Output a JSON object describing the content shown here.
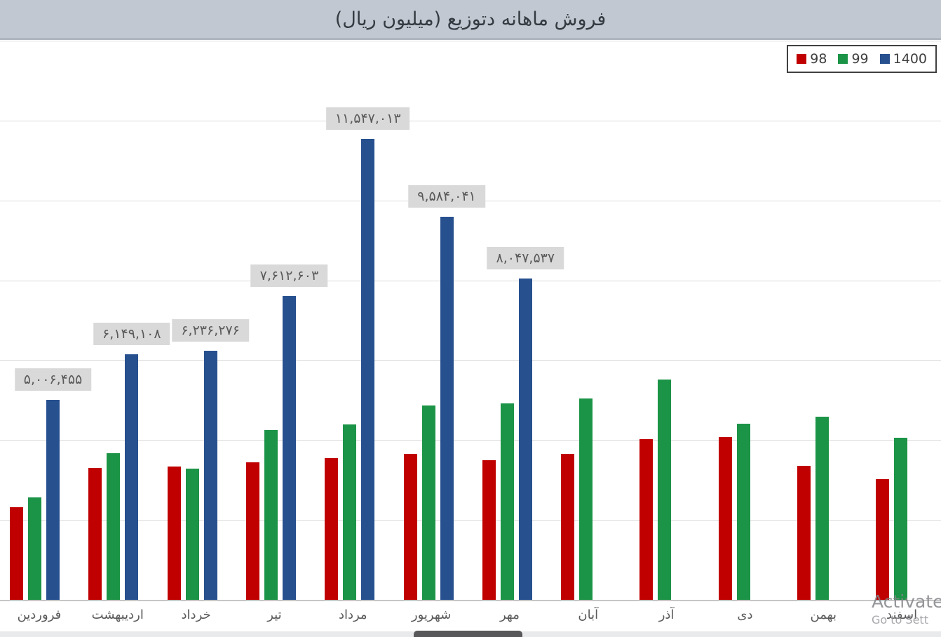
{
  "header": {
    "title": "فروش ماهانه دتوزیع (میلیون ریال)"
  },
  "watermark": {
    "line1": "Activate",
    "line2": "Go to Sett"
  },
  "colors": {
    "series_98": "#c00000",
    "series_99": "#1c9447",
    "series_1400": "#27508f",
    "header_bg": "#c2c8d1",
    "gridline": "#dcdcdc",
    "value_label_bg": "#d9d9d9",
    "value_label_text": "#595959"
  },
  "chart_data": {
    "type": "bar",
    "title": "فروش ماهانه دتوزیع (میلیون ریال)",
    "categories": [
      "فروردین",
      "اردیبهشت",
      "خرداد",
      "تیر",
      "مرداد",
      "شهریور",
      "مهر",
      "آبان",
      "آذر",
      "دی",
      "بهمن",
      "اسفند"
    ],
    "series": [
      {
        "name": "98",
        "color": "#c00000",
        "values": [
          2320000,
          3300000,
          3340000,
          3440000,
          3550000,
          3650000,
          3500000,
          3650000,
          4020000,
          4080000,
          3360000,
          3020000
        ]
      },
      {
        "name": "99",
        "color": "#1c9447",
        "values": [
          2570000,
          3670000,
          3290000,
          4250000,
          4390000,
          4870000,
          4920000,
          5040000,
          5520000,
          4410000,
          4590000,
          4060000
        ]
      },
      {
        "name": "1400",
        "color": "#27508f",
        "values": [
          5006455,
          6149108,
          6236276,
          7612603,
          11547013,
          9584041,
          8047537,
          null,
          null,
          null,
          null,
          null
        ],
        "data_labels": [
          "۵,۰۰۶,۴۵۵",
          "۶,۱۴۹,۱۰۸",
          "۶,۲۳۶,۲۷۶",
          "۷,۶۱۲,۶۰۳",
          "۱۱,۵۴۷,۰۱۳",
          "۹,۵۸۴,۰۴۱",
          "۸,۰۴۷,۵۳۷",
          null,
          null,
          null,
          null,
          null
        ]
      }
    ],
    "ylim": [
      0,
      14000000
    ],
    "gridline_step": 2000000,
    "grid": true,
    "legend_position": "top-right",
    "xlabel": "",
    "ylabel": ""
  }
}
